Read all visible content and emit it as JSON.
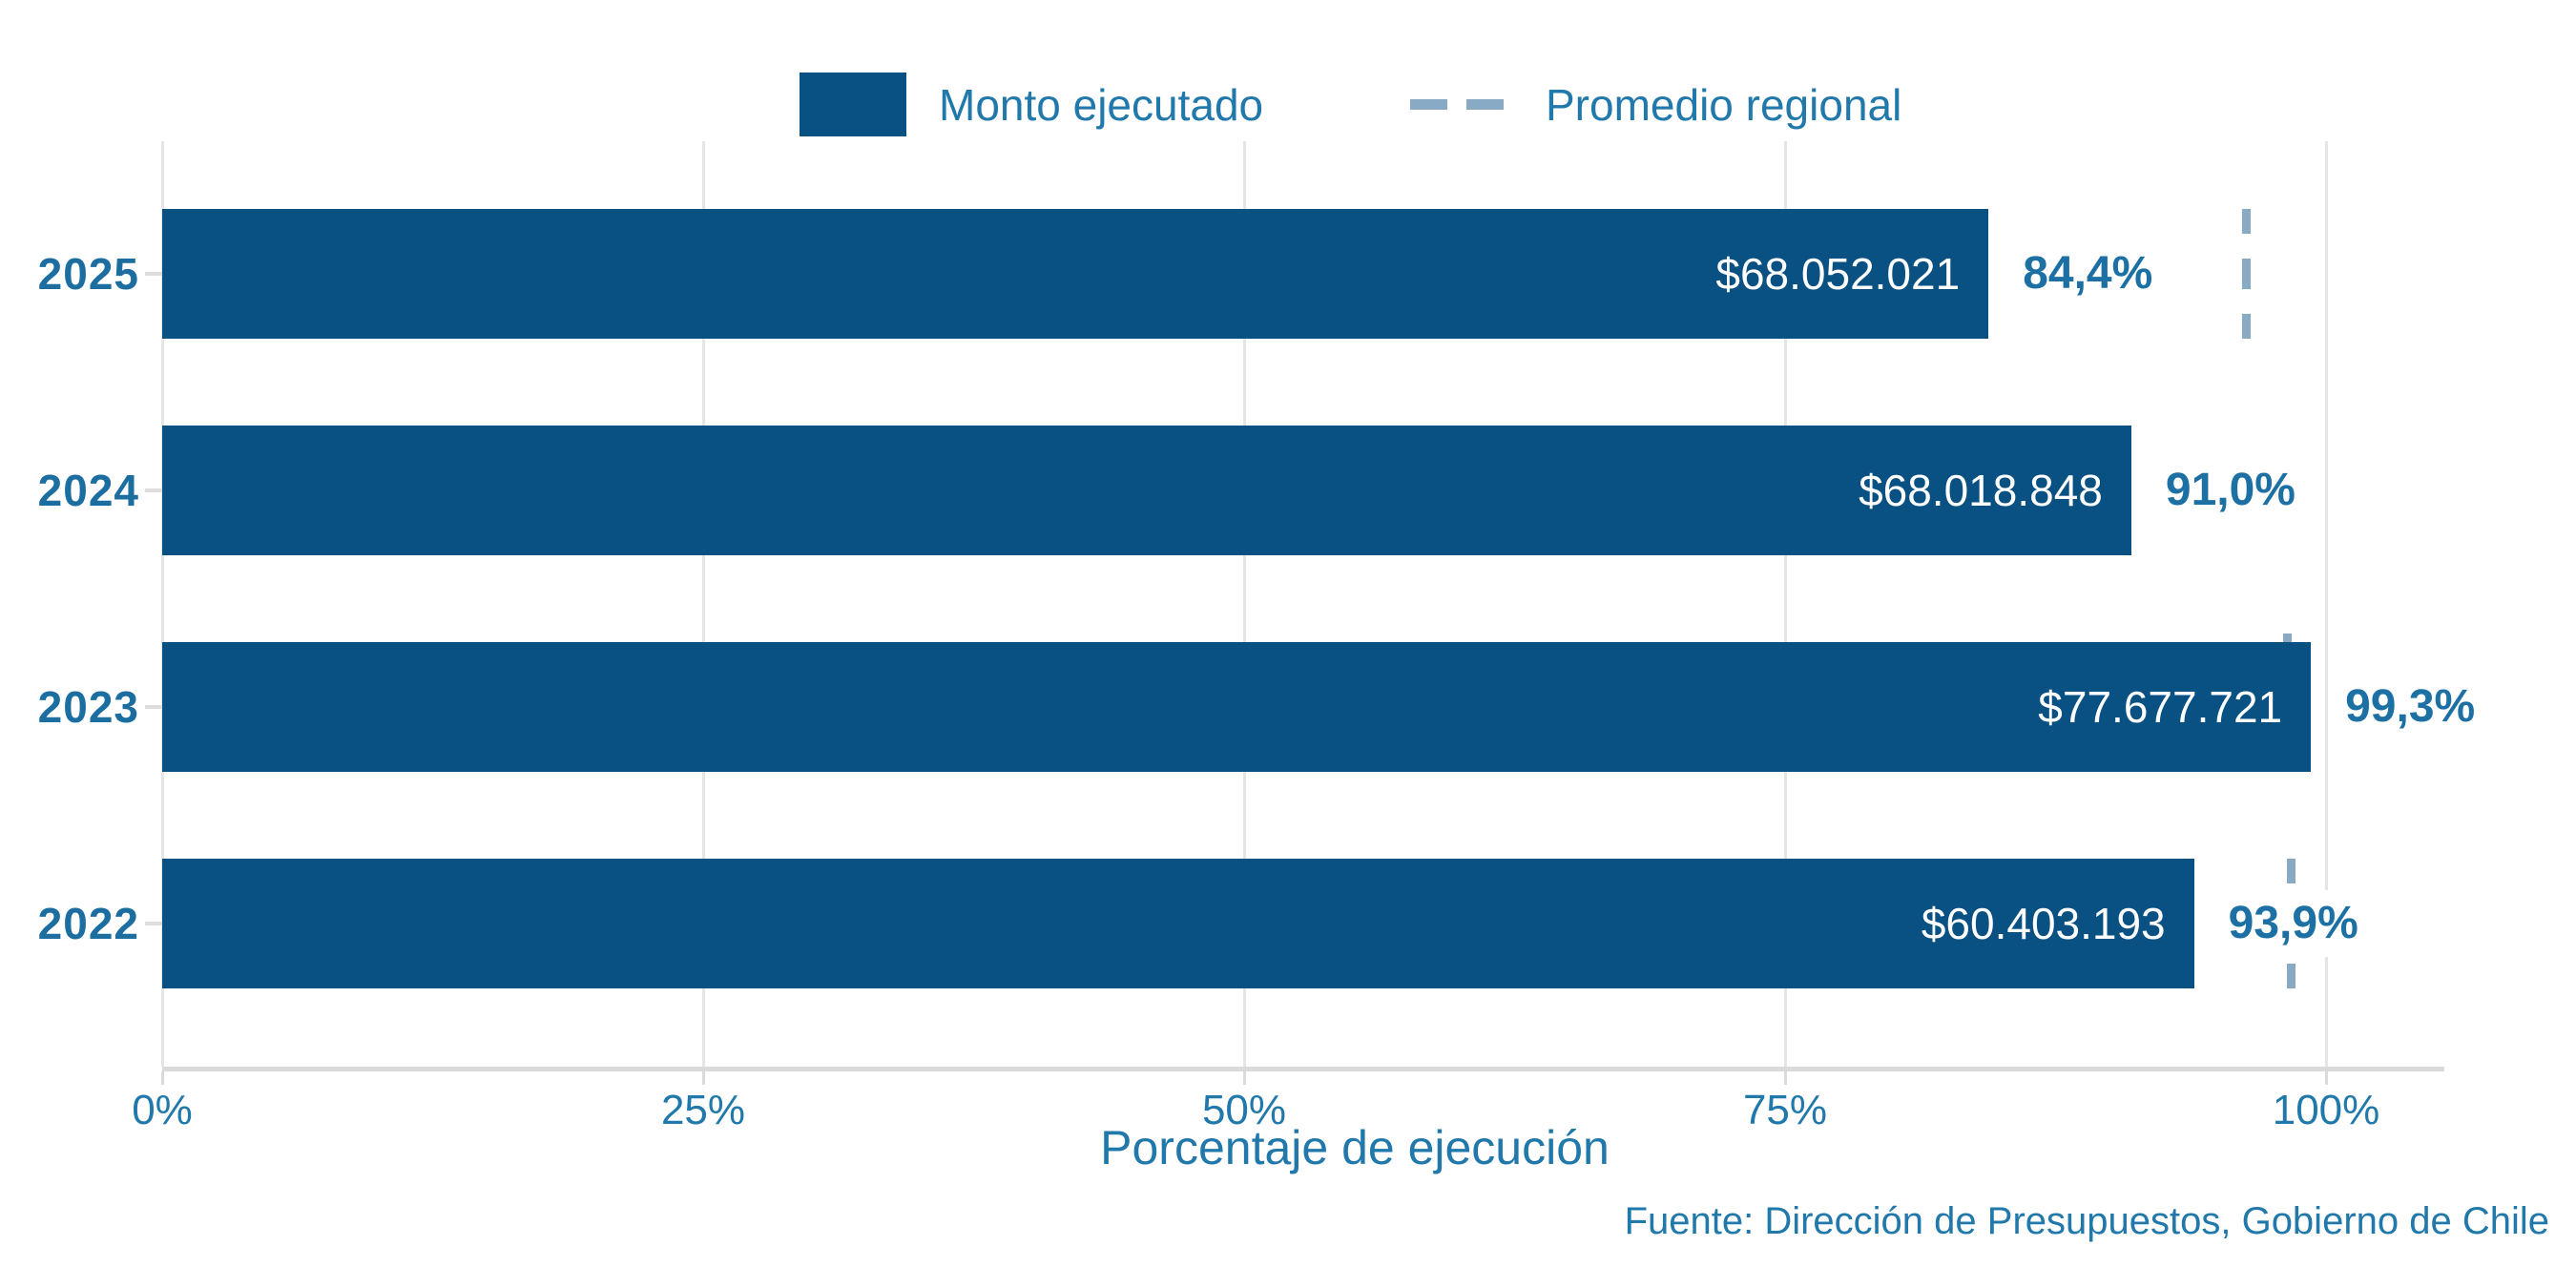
{
  "colors": {
    "bar": "#0A5183",
    "accent_text": "#2078AB",
    "bold_text": "#1C6DA0",
    "pct_text": "#1D70A4",
    "promedio_dash": "#88AAC4",
    "grid": "#E5E5E5",
    "axis": "#DADADA",
    "bar_label": "#FFFFFF"
  },
  "chart_data": {
    "type": "bar",
    "orientation": "horizontal",
    "categories": [
      "2025",
      "2024",
      "2023",
      "2022"
    ],
    "series": [
      {
        "name": "Monto ejecutado",
        "pct": [
          84.4,
          91.0,
          99.3,
          93.9
        ],
        "pct_labels": [
          "84,4%",
          "91,0%",
          "99,3%",
          "93,9%"
        ],
        "amount_labels": [
          "$68.052.021",
          "$68.018.848",
          "$77.677.721",
          "$60.403.193"
        ]
      },
      {
        "name": "Promedio regional",
        "pct": [
          96.3,
          null,
          98.2,
          98.4
        ],
        "display": [
          "full",
          null,
          "peek",
          "full"
        ]
      }
    ],
    "x_ticks": [
      "0%",
      "25%",
      "50%",
      "75%",
      "100%"
    ],
    "x_tick_values": [
      0,
      25,
      50,
      75,
      100
    ],
    "xlim": [
      0,
      105
    ],
    "grid": true,
    "legend_position": "top",
    "xlabel": "Porcentaje de ejecución",
    "source": "Fuente: Dirección de Presupuestos, Gobierno de Chile"
  }
}
